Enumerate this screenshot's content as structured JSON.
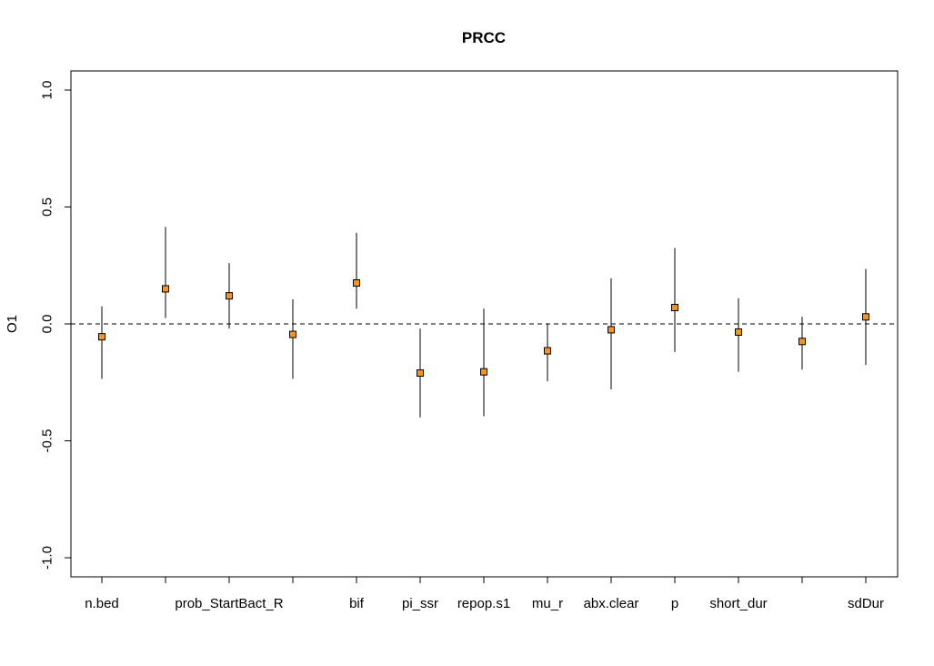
{
  "chart_data": {
    "type": "scatter",
    "title": "PRCC",
    "xlabel": "",
    "ylabel": "O1",
    "ylim": [
      -1.0,
      1.0
    ],
    "yticks": [
      -1.0,
      -0.5,
      0.0,
      0.5,
      1.0
    ],
    "ytick_labels": [
      "-1.0",
      "-0.5",
      "0.0",
      "0.5",
      "1.0"
    ],
    "reference_line": 0.0,
    "marker_color": "#f7941d",
    "categories": [
      "n.bed",
      "",
      "prob_StartBact_R",
      "",
      "bif",
      "pi_ssr",
      "repop.s1",
      "mu_r",
      "abx.clear",
      "p",
      "short_dur",
      "",
      "sdDur"
    ],
    "values": [
      -0.055,
      0.15,
      0.12,
      -0.045,
      0.175,
      -0.21,
      -0.205,
      -0.115,
      -0.025,
      0.07,
      -0.035,
      -0.075,
      0.03
    ],
    "lower": [
      -0.235,
      0.025,
      -0.02,
      -0.235,
      0.065,
      -0.4,
      -0.395,
      -0.245,
      -0.28,
      -0.12,
      -0.205,
      -0.195,
      -0.175
    ],
    "upper": [
      0.075,
      0.415,
      0.26,
      0.105,
      0.39,
      -0.02,
      0.065,
      0.0,
      0.195,
      0.325,
      0.11,
      0.03,
      0.235
    ],
    "grid": false,
    "legend": "none"
  }
}
